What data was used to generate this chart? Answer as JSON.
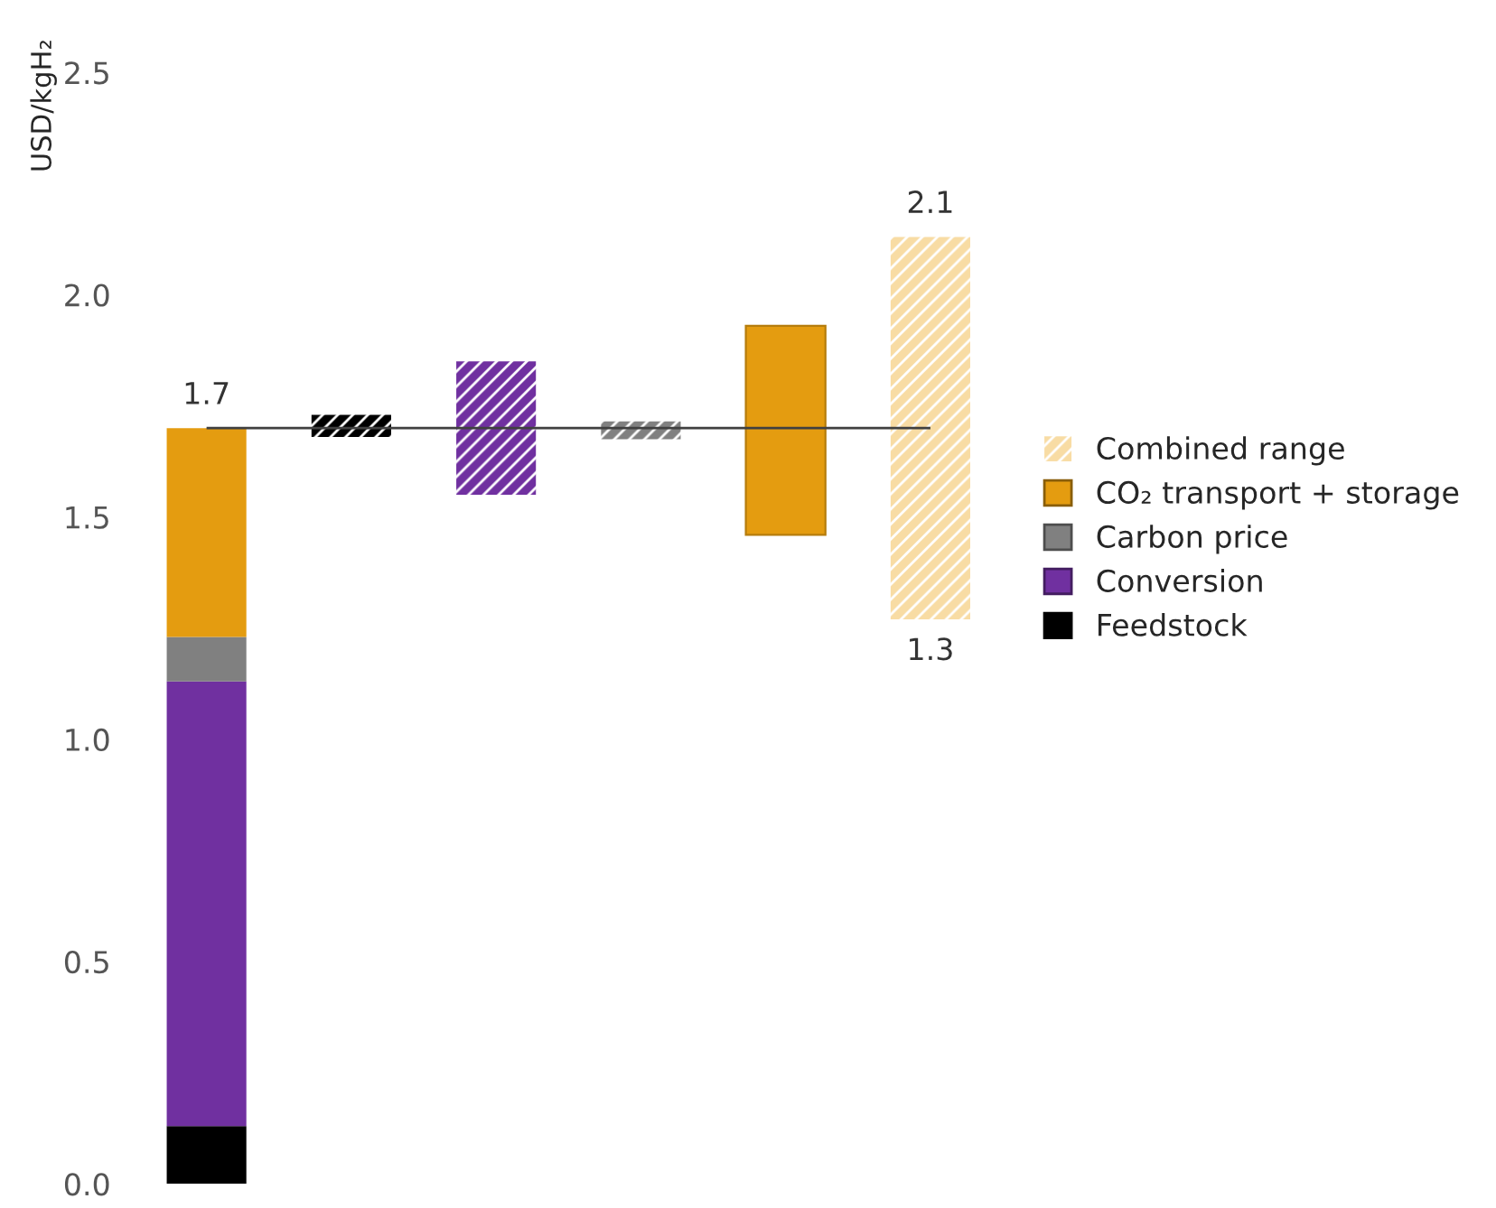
{
  "chart_data": {
    "type": "bar",
    "stacked": true,
    "ylabel": "USD/kgH₂",
    "categories": [
      null,
      null,
      null,
      null,
      null,
      null
    ],
    "series": [
      {
        "name": "Feedstock",
        "color": "#000000",
        "values": [
          0.13,
          0.05,
          null,
          null,
          null,
          null
        ],
        "base": [
          null,
          1.68,
          null,
          null,
          null,
          null
        ]
      },
      {
        "name": "Conversion",
        "color": "#7030a0",
        "values": [
          1.0,
          null,
          0.3,
          null,
          null,
          null
        ],
        "base": [
          null,
          null,
          1.55,
          null,
          null,
          null
        ]
      },
      {
        "name": "Carbon price",
        "color": "#808080",
        "values": [
          0.1,
          null,
          null,
          0.04,
          null,
          null
        ],
        "base": [
          null,
          null,
          null,
          1.675,
          null,
          null
        ]
      },
      {
        "name": "CO₂ transport + storage",
        "color": "#e49c10",
        "values": [
          0.47,
          null,
          null,
          null,
          0.47,
          null
        ],
        "base": [
          null,
          null,
          null,
          null,
          1.46,
          null
        ]
      },
      {
        "name": "Combined range",
        "color": "#f8dca4",
        "values": [
          null,
          null,
          null,
          null,
          null,
          0.86
        ],
        "base": [
          null,
          null,
          null,
          null,
          null,
          1.27
        ]
      }
    ],
    "totals": [
      "1.7",
      null,
      null,
      null,
      null,
      null
    ],
    "annotations": [
      {
        "text": "2.1",
        "y": 2.13
      },
      {
        "text": "1.3",
        "y": 1.27
      }
    ],
    "ref_lines": [
      {
        "axis": "y",
        "value": 1.7,
        "color": "#404040"
      }
    ],
    "ylim": [
      0,
      2.5
    ],
    "yticks": [
      {
        "value": 0,
        "label": "0.0"
      },
      {
        "value": 0.5,
        "label": "0.5"
      },
      {
        "value": 1,
        "label": "1.0"
      },
      {
        "value": 1.5,
        "label": "1.5"
      },
      {
        "value": 2,
        "label": "2.0"
      },
      {
        "value": 2.5,
        "label": "2.5"
      }
    ],
    "tick_labels": "y",
    "grid": false,
    "legend": "right"
  }
}
